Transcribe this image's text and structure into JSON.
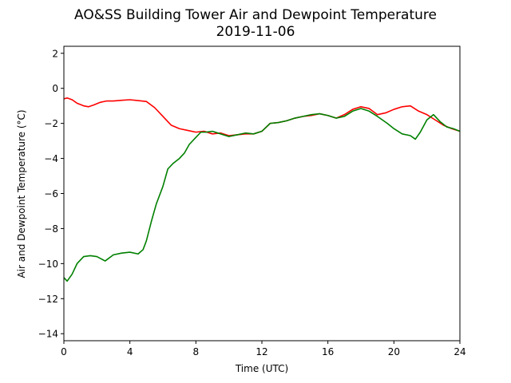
{
  "chart_data": {
    "type": "line",
    "title": "AO&SS Building Tower Air and Dewpoint Temperature",
    "subtitle": "2019-11-06",
    "xlabel": "Time (UTC)",
    "ylabel": "Air and Dewpoint Temperature (°C)",
    "xlim": [
      0,
      24
    ],
    "ylim": [
      -14.4,
      2.4
    ],
    "xticks": [
      0,
      4,
      8,
      12,
      16,
      20,
      24
    ],
    "yticks": [
      2,
      0,
      -2,
      -4,
      -6,
      -8,
      -10,
      -12,
      -14
    ],
    "grid": false,
    "legend": "none",
    "series": [
      {
        "color": "#ff0000",
        "x": [
          0,
          0.2,
          0.5,
          0.8,
          1.2,
          1.5,
          1.8,
          2.2,
          2.6,
          3.0,
          3.5,
          4.0,
          4.5,
          5.0,
          5.5,
          6.0,
          6.5,
          7.0,
          7.5,
          8.0,
          8.5,
          9.0,
          9.5,
          10.0,
          10.5,
          11.0,
          11.5,
          12.0,
          12.5,
          13.0,
          13.5,
          14.0,
          14.5,
          15.0,
          15.5,
          16.0,
          16.5,
          17.0,
          17.5,
          18.0,
          18.5,
          19.0,
          19.5,
          20.0,
          20.5,
          21.0,
          21.5,
          22.0,
          22.5,
          23.0,
          23.5,
          24.0
        ],
        "y": [
          -0.6,
          -0.55,
          -0.65,
          -0.85,
          -1.0,
          -1.05,
          -0.95,
          -0.8,
          -0.72,
          -0.72,
          -0.68,
          -0.65,
          -0.7,
          -0.75,
          -1.1,
          -1.6,
          -2.1,
          -2.3,
          -2.4,
          -2.5,
          -2.45,
          -2.6,
          -2.55,
          -2.7,
          -2.65,
          -2.6,
          -2.6,
          -2.45,
          -2.0,
          -1.95,
          -1.85,
          -1.7,
          -1.6,
          -1.55,
          -1.45,
          -1.55,
          -1.7,
          -1.5,
          -1.2,
          -1.05,
          -1.15,
          -1.5,
          -1.4,
          -1.2,
          -1.05,
          -1.0,
          -1.3,
          -1.5,
          -1.8,
          -2.1,
          -2.3,
          -2.45
        ]
      },
      {
        "color": "#008000",
        "x": [
          0,
          0.2,
          0.5,
          0.8,
          1.2,
          1.6,
          2.0,
          2.5,
          3.0,
          3.5,
          4.0,
          4.5,
          4.8,
          5.0,
          5.3,
          5.6,
          6.0,
          6.3,
          6.6,
          7.0,
          7.3,
          7.6,
          8.0,
          8.3,
          8.6,
          9.0,
          9.5,
          10.0,
          10.5,
          11.0,
          11.5,
          12.0,
          12.5,
          13.0,
          13.5,
          14.0,
          14.5,
          15.0,
          15.5,
          16.0,
          16.5,
          17.0,
          17.5,
          18.0,
          18.5,
          19.0,
          19.3,
          19.6,
          20.0,
          20.5,
          21.0,
          21.3,
          21.6,
          22.0,
          22.4,
          22.8,
          23.2,
          23.6,
          24.0
        ],
        "y": [
          -10.8,
          -11.0,
          -10.6,
          -10.0,
          -9.6,
          -9.55,
          -9.6,
          -9.85,
          -9.5,
          -9.4,
          -9.35,
          -9.45,
          -9.2,
          -8.7,
          -7.6,
          -6.6,
          -5.6,
          -4.6,
          -4.3,
          -4.0,
          -3.7,
          -3.2,
          -2.8,
          -2.5,
          -2.5,
          -2.45,
          -2.6,
          -2.75,
          -2.65,
          -2.55,
          -2.6,
          -2.45,
          -2.0,
          -1.95,
          -1.85,
          -1.7,
          -1.6,
          -1.5,
          -1.45,
          -1.55,
          -1.7,
          -1.6,
          -1.3,
          -1.15,
          -1.3,
          -1.6,
          -1.8,
          -2.0,
          -2.3,
          -2.6,
          -2.7,
          -2.9,
          -2.5,
          -1.8,
          -1.5,
          -1.9,
          -2.2,
          -2.3,
          -2.45
        ]
      }
    ]
  }
}
